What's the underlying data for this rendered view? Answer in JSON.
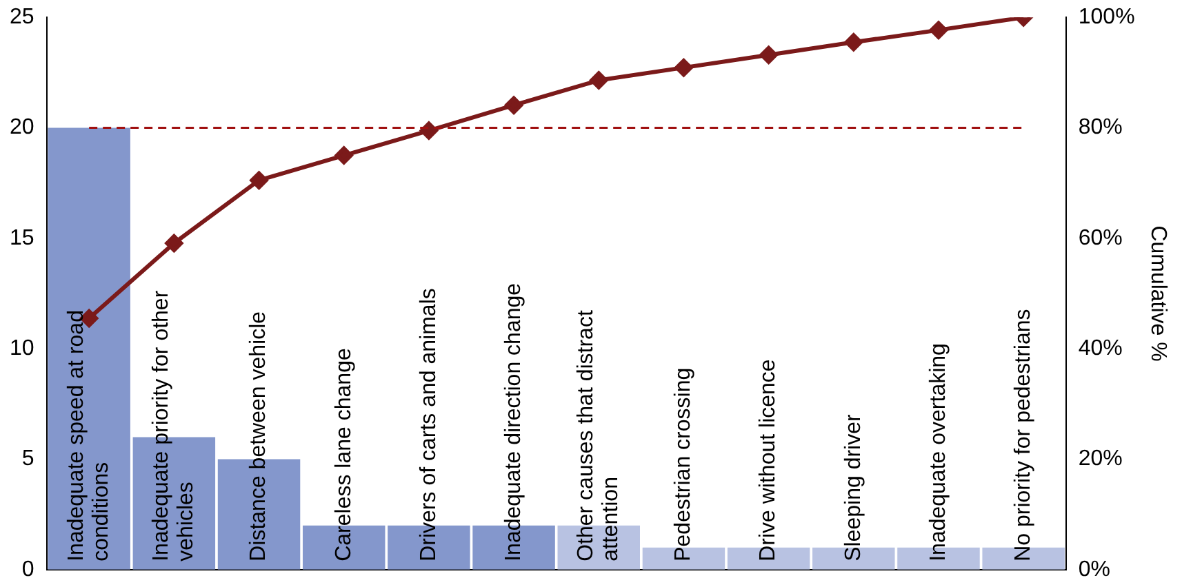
{
  "chart_data": {
    "type": "bar",
    "y2label": "Cumulative %",
    "categories": [
      "Inadequate speed at road conditions",
      "Inadequate priority for other vehicles",
      "Distance between vehicle",
      "Careless lane change",
      "Drivers of carts and animals",
      "Inadequate direction change",
      "Other causes that distract attention",
      "Pedestrian crossing",
      "Drive without licence",
      "Sleeping driver",
      "Inadequate overtaking",
      "No priority for pedestrians"
    ],
    "series": [
      {
        "colors": [
          "#8497cc",
          "#8497cc",
          "#8497cc",
          "#8497cc",
          "#8497cc",
          "#8497cc",
          "#b8c2e2",
          "#b8c2e2",
          "#b8c2e2",
          "#b8c2e2",
          "#b8c2e2",
          "#b8c2e2"
        ],
        "values": [
          20,
          6,
          5,
          2,
          2,
          2,
          2,
          1,
          1,
          1,
          1,
          1
        ]
      },
      {
        "type": "line",
        "axis": "y2",
        "color": "#7b1a1a",
        "marker": "diamond",
        "line_style": "solid",
        "values": [
          45.5,
          59.1,
          70.5,
          75,
          79.5,
          84.1,
          88.6,
          90.9,
          93.2,
          95.5,
          97.7,
          100
        ]
      }
    ],
    "ylim": [
      0,
      25
    ],
    "yticks": [
      0,
      5,
      10,
      15,
      20,
      25
    ],
    "y2lim": [
      0,
      100
    ],
    "y2ticks": [
      {
        "value": 0,
        "label": "0%"
      },
      {
        "value": 20,
        "label": "20%"
      },
      {
        "value": 40,
        "label": "40%"
      },
      {
        "value": 60,
        "label": "60%"
      },
      {
        "value": 80,
        "label": "80%"
      },
      {
        "value": 100,
        "label": "100%"
      }
    ],
    "ref_lines": [
      {
        "axis": "y2",
        "value": 80,
        "color": "#a01010",
        "line_style": "dashed"
      }
    ],
    "grid": false,
    "legend": false
  }
}
